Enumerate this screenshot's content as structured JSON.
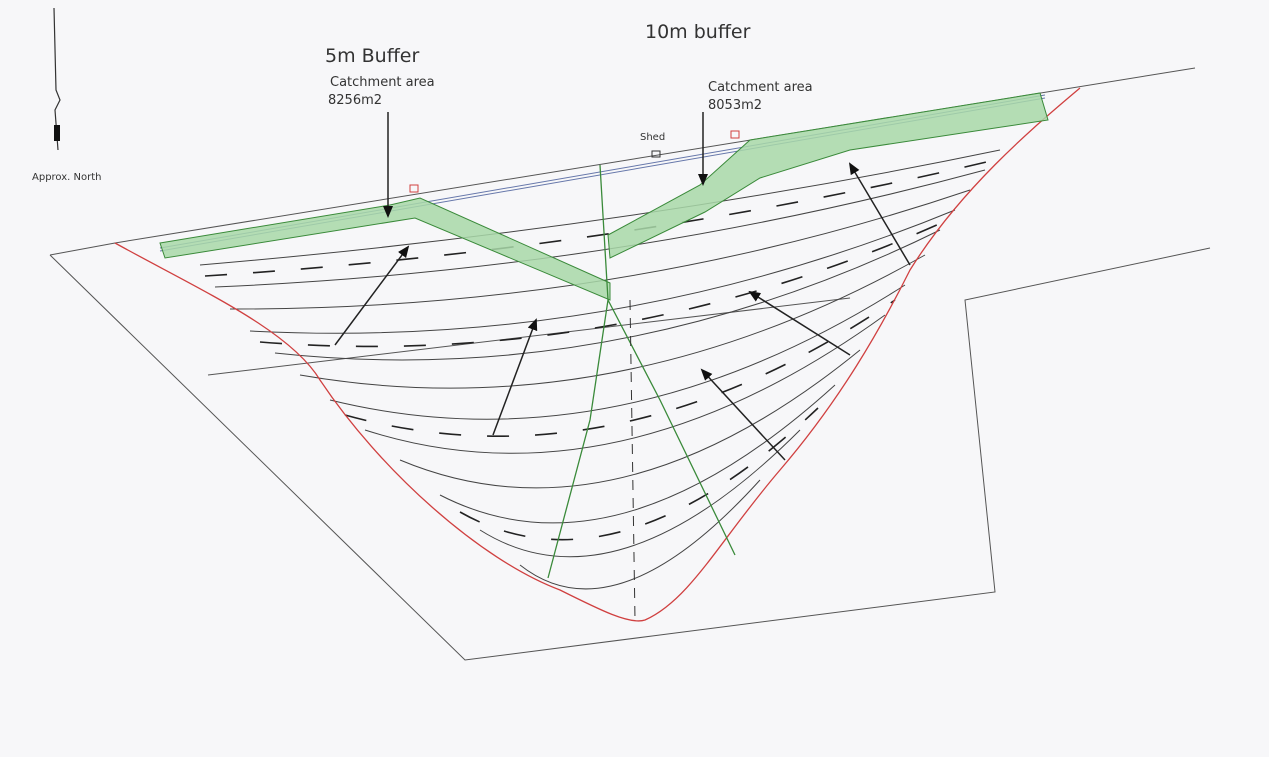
{
  "north_label": "Approx. North",
  "buffer_5m": {
    "title": "5m Buffer",
    "caption": "Catchment area",
    "area": "8256m2"
  },
  "buffer_10m": {
    "title": "10m buffer",
    "caption": "Catchment area",
    "area": "8053m2"
  },
  "shed_label": "Shed"
}
